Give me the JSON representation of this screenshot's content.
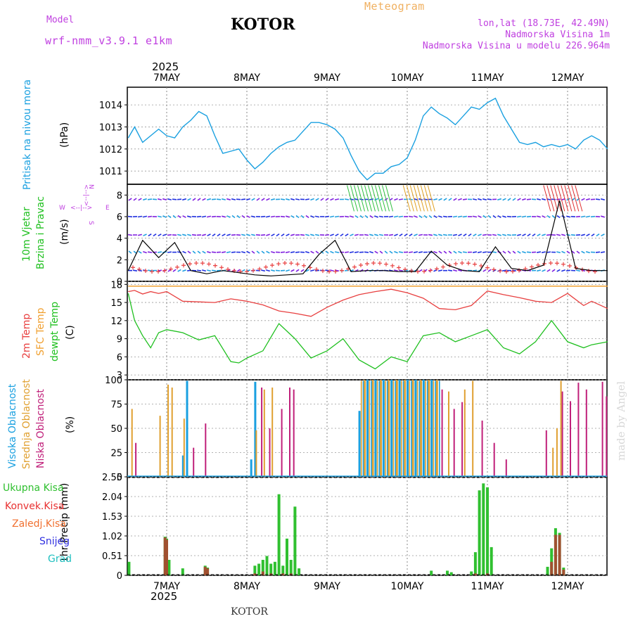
{
  "header": {
    "model_label": "Model",
    "model_name": "wrf-nmm_v3.9.1 e1km",
    "title": "KOTOR",
    "meteogram_label": "Meteogram",
    "coords": "lon,lat (18.73E, 42.49N)",
    "elevation": "Nadmorska Visina 1m",
    "model_elevation": "Nadmorska Visina u modelu 226.964m",
    "top_year": "2025",
    "bottom_year": "2025",
    "footer_location": "KOTOR",
    "made_by": "made by Angel"
  },
  "colors": {
    "pressure": "#1aa0e0",
    "temp2m": "#e84040",
    "sfc_temp": "#f0a030",
    "dewpoint": "#20c020",
    "cloud_high": "#1aa0e0",
    "cloud_mid": "#e0a030",
    "cloud_low": "#c0207a",
    "precip_total": "#30c030",
    "precip_conv": "#e83030",
    "precip_frozen": "#f07030",
    "snow": "#3030e0",
    "hail": "#20c0c0",
    "wind_label": "#20c020",
    "wind_compass": "#c040e0",
    "model_color": "#c040e0"
  },
  "chart_data": [
    {
      "id": "pressure",
      "type": "line",
      "ylabel": "Pritisak na nivou mora",
      "unit": "(hPa)",
      "yticks": [
        "1011",
        "1012",
        "1013",
        "1014"
      ],
      "xcats": [
        "7MAY",
        "8MAY",
        "9MAY",
        "10MAY",
        "11MAY",
        "12MAY"
      ],
      "series": [
        {
          "x": [
            -0.48,
            -0.4,
            -0.3,
            -0.2,
            -0.1,
            0.0,
            0.1,
            0.2,
            0.3,
            0.4,
            0.5,
            0.6,
            0.7,
            0.8,
            0.9,
            1.0,
            1.1,
            1.2,
            1.3,
            1.4,
            1.5,
            1.6,
            1.7,
            1.8,
            1.9,
            2.0,
            2.1,
            2.2,
            2.3,
            2.4,
            2.5,
            2.6,
            2.7,
            2.8,
            2.9,
            3.0,
            3.1,
            3.2,
            3.3,
            3.4,
            3.5,
            3.6,
            3.7,
            3.8,
            3.9,
            4.0,
            4.1,
            4.2,
            4.3,
            4.4,
            4.5,
            4.6,
            4.7,
            4.8,
            4.9,
            5.0,
            5.1,
            5.2,
            5.3,
            5.4,
            5.5
          ],
          "y": [
            1012.5,
            1013.0,
            1012.3,
            1012.6,
            1012.9,
            1012.6,
            1012.5,
            1013.0,
            1013.3,
            1013.7,
            1013.5,
            1012.6,
            1011.8,
            1011.9,
            1012.0,
            1011.5,
            1011.1,
            1011.4,
            1011.8,
            1012.1,
            1012.3,
            1012.4,
            1012.8,
            1013.2,
            1013.2,
            1013.1,
            1012.9,
            1012.5,
            1011.7,
            1011.0,
            1010.6,
            1010.9,
            1010.9,
            1011.2,
            1011.3,
            1011.6,
            1012.4,
            1013.5,
            1013.9,
            1013.6,
            1013.4,
            1013.1,
            1013.5,
            1013.9,
            1013.8,
            1014.1,
            1014.3,
            1013.5,
            1012.9,
            1012.3,
            1012.2,
            1012.3,
            1012.1,
            1012.2,
            1012.1,
            1012.2,
            1012.0,
            1012.4,
            1012.6,
            1012.4,
            1012.0
          ]
        }
      ],
      "ylim": [
        1010.4,
        1014.8
      ]
    },
    {
      "id": "wind",
      "type": "line",
      "ylabel": "10m Vjetar Brzina i Pravac",
      "unit": "(m/s)",
      "compass": {
        "n": "N",
        "s": "S",
        "e": "E",
        "w": "W",
        "dash": "<--|-->"
      },
      "yticks": [
        "0",
        "2",
        "4",
        "6",
        "8"
      ],
      "ylim": [
        0,
        9
      ],
      "series": [
        {
          "name": "",
          "x": [
            -0.48,
            -0.3,
            -0.1,
            0.1,
            0.3,
            0.5,
            0.7,
            0.9,
            1.1,
            1.3,
            1.5,
            1.7,
            1.9,
            2.1,
            2.3,
            2.5,
            2.7,
            2.9,
            3.1,
            3.3,
            3.5,
            3.7,
            3.9,
            4.1,
            4.3,
            4.5,
            4.7,
            4.9,
            5.1,
            5.3,
            5.5
          ],
          "y": [
            1.0,
            3.8,
            2.2,
            3.6,
            1.0,
            0.7,
            1.0,
            0.8,
            0.6,
            0.5,
            0.6,
            0.7,
            2.5,
            3.8,
            0.9,
            1.0,
            1.0,
            0.9,
            0.9,
            2.8,
            1.5,
            1.0,
            0.9,
            3.2,
            1.2,
            1.0,
            1.5,
            7.5,
            1.2,
            1.0,
            1.0
          ]
        }
      ],
      "arrow_levels": [
        1,
        2.7,
        4.3,
        6,
        7.6
      ]
    },
    {
      "id": "temperature",
      "type": "line",
      "ylabel_1": "2m Temp",
      "ylabel_2": "SFC Temp",
      "ylabel_3": "dewpt Temp",
      "unit": "(C)",
      "yticks": [
        "3",
        "6",
        "9",
        "12",
        "15",
        "18"
      ],
      "ylim": [
        2.2,
        18.5
      ],
      "series": [
        {
          "name": "2m Temp",
          "x": [
            -0.48,
            -0.4,
            -0.3,
            -0.2,
            -0.1,
            0.0,
            0.2,
            0.4,
            0.6,
            0.8,
            1.0,
            1.2,
            1.4,
            1.6,
            1.8,
            2.0,
            2.2,
            2.4,
            2.6,
            2.8,
            3.0,
            3.2,
            3.4,
            3.6,
            3.8,
            4.0,
            4.2,
            4.4,
            4.6,
            4.8,
            5.0,
            5.2,
            5.3,
            5.5
          ],
          "y": [
            16.8,
            17.0,
            16.4,
            16.8,
            16.5,
            16.8,
            15.2,
            15.1,
            15.0,
            15.6,
            15.2,
            14.6,
            13.6,
            13.2,
            12.7,
            14.2,
            15.4,
            16.3,
            16.8,
            17.2,
            16.6,
            15.7,
            14.0,
            13.8,
            14.5,
            16.9,
            16.3,
            15.8,
            15.2,
            15.0,
            16.5,
            14.5,
            15.2,
            14.0
          ]
        },
        {
          "name": "SFC Temp",
          "x": [
            -0.48,
            5.5
          ],
          "y": [
            17.7,
            17.7
          ]
        },
        {
          "name": "dewpt Temp",
          "x": [
            -0.48,
            -0.4,
            -0.3,
            -0.2,
            -0.1,
            0.0,
            0.2,
            0.4,
            0.6,
            0.8,
            0.9,
            1.0,
            1.2,
            1.4,
            1.6,
            1.8,
            2.0,
            2.2,
            2.4,
            2.6,
            2.8,
            3.0,
            3.2,
            3.4,
            3.6,
            3.8,
            4.0,
            4.2,
            4.4,
            4.6,
            4.8,
            5.0,
            5.2,
            5.3,
            5.5
          ],
          "y": [
            16.5,
            12.0,
            9.5,
            7.5,
            10.0,
            10.5,
            10.0,
            8.8,
            9.5,
            5.2,
            5.0,
            5.8,
            7.0,
            11.5,
            9.0,
            5.8,
            7.0,
            9.0,
            5.5,
            4.0,
            6.0,
            5.2,
            9.5,
            10.0,
            8.5,
            9.5,
            10.5,
            7.5,
            6.5,
            8.5,
            12.0,
            8.5,
            7.5,
            8.0,
            8.5
          ]
        }
      ]
    },
    {
      "id": "clouds",
      "type": "bar",
      "ylabel_1": "Visoka Oblacnost",
      "ylabel_2": "Srednja Oblacnost",
      "ylabel_3": "Niska Oblacnost",
      "unit": "(%)",
      "yticks": [
        "0",
        "25",
        "50",
        "75",
        "100"
      ],
      "ylim": [
        0,
        100
      ],
      "series": [
        {
          "name": "Visoka Oblacnost",
          "x": [
            0.2,
            0.25,
            1.05,
            1.1,
            2.4,
            2.5,
            2.6,
            2.7,
            2.8,
            2.9,
            3.0,
            3.1,
            3.2,
            3.3
          ],
          "y": [
            22,
            99,
            18,
            98,
            68,
            100,
            100,
            100,
            100,
            100,
            100,
            100,
            100,
            100
          ]
        },
        {
          "name": "Srednja Oblacnost",
          "x": [
            -0.45,
            -0.1,
            0.0,
            0.05,
            0.2,
            1.1,
            1.2,
            1.3,
            2.45,
            2.55,
            2.65,
            2.75,
            2.85,
            2.95,
            3.05,
            3.15,
            3.25,
            3.35,
            3.5,
            3.7,
            3.8,
            4.8,
            4.85,
            4.9
          ],
          "y": [
            70,
            63,
            95,
            92,
            60,
            48,
            90,
            92,
            100,
            100,
            100,
            100,
            100,
            100,
            100,
            100,
            100,
            100,
            88,
            90,
            99,
            30,
            50,
            99
          ]
        },
        {
          "name": "Niska Oblacnost",
          "x": [
            -0.42,
            0.3,
            0.45,
            1.15,
            1.25,
            1.4,
            1.5,
            1.55,
            3.4,
            3.55,
            3.65,
            3.9,
            4.05,
            4.2,
            4.7,
            4.9,
            5.0,
            5.1,
            5.2,
            5.4,
            5.45
          ],
          "y": [
            35,
            30,
            55,
            92,
            50,
            70,
            92,
            90,
            90,
            70,
            77,
            58,
            35,
            18,
            48,
            88,
            78,
            97,
            90,
            98,
            83
          ]
        }
      ]
    },
    {
      "id": "precip",
      "type": "bar",
      "ylabel": "1hr Precip (mm)",
      "legend": [
        "Ukupna Kisa",
        "Konvek.Kisa",
        "Zaledj.Kisa",
        "Snijeg",
        "Grad"
      ],
      "yticks": [
        "0",
        "0.51",
        "1.02",
        "1.53",
        "2.04",
        "2.55"
      ],
      "ylim": [
        0,
        2.55
      ],
      "xcats": [
        "7MAY",
        "8MAY",
        "9MAY",
        "10MAY",
        "11MAY",
        "12MAY"
      ],
      "series": [
        {
          "name": "Ukupna Kisa",
          "x": [
            -0.47,
            -0.02,
            0.0,
            0.03,
            0.2,
            0.48,
            0.51,
            1.1,
            1.15,
            1.2,
            1.25,
            1.3,
            1.35,
            1.4,
            1.45,
            1.5,
            1.55,
            1.6,
            1.65,
            3.3,
            3.5,
            3.55,
            3.8,
            3.85,
            3.9,
            3.95,
            4.0,
            4.05,
            4.75,
            4.8,
            4.85,
            4.9,
            4.95
          ],
          "y": [
            0.35,
            1.0,
            0.95,
            0.4,
            0.18,
            0.25,
            0.2,
            0.25,
            0.3,
            0.4,
            0.5,
            0.3,
            0.35,
            2.1,
            0.25,
            0.95,
            0.4,
            1.78,
            0.18,
            0.12,
            0.12,
            0.08,
            0.1,
            0.6,
            2.2,
            2.38,
            2.28,
            0.73,
            0.22,
            0.7,
            1.22,
            1.1,
            0.2
          ]
        },
        {
          "name": "Konvek.Kisa",
          "x": [
            -0.02,
            0.0,
            0.48,
            0.51,
            1.1,
            1.2,
            1.3,
            1.45,
            1.55,
            3.85,
            4.0,
            4.8,
            4.85,
            4.9,
            4.95
          ],
          "y": [
            0.98,
            0.92,
            0.22,
            0.18,
            0.05,
            0.1,
            0.05,
            0.05,
            0.05,
            0.05,
            0.05,
            0.35,
            1.05,
            1.05,
            0.15
          ]
        }
      ]
    }
  ]
}
